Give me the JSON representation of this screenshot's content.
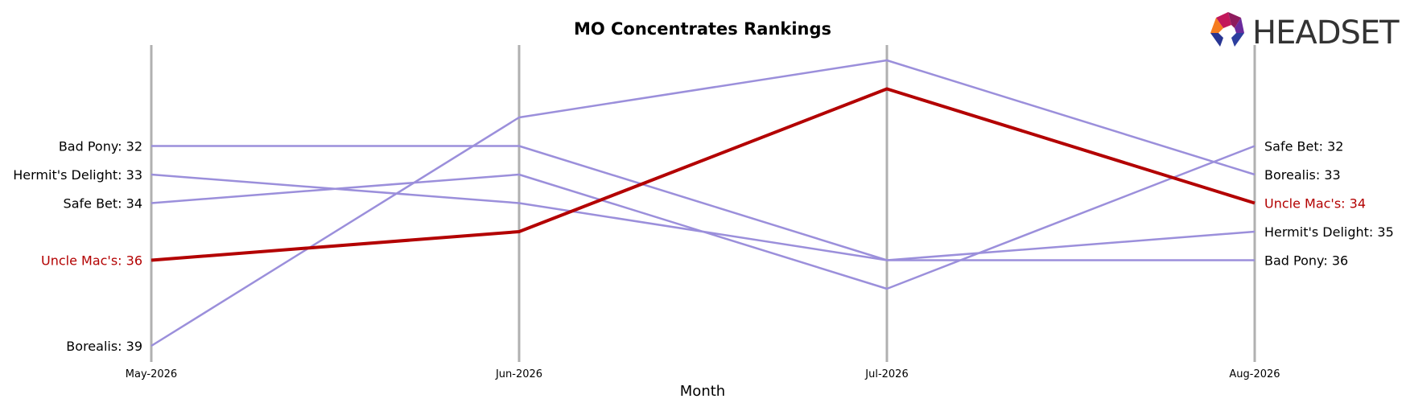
{
  "chart_data": {
    "type": "line",
    "title": "MO Concentrates Rankings",
    "xlabel": "Month",
    "ylabel": "",
    "categories": [
      "May-2026",
      "Jun-2026",
      "Jul-2026",
      "Aug-2026"
    ],
    "y_inverted": true,
    "ylim": [
      29,
      40
    ],
    "series": [
      {
        "name": "Bad Pony",
        "values": [
          32,
          32,
          36,
          36
        ],
        "highlight": false
      },
      {
        "name": "Hermit's Delight",
        "values": [
          33,
          34,
          36,
          35
        ],
        "highlight": false
      },
      {
        "name": "Safe Bet",
        "values": [
          34,
          33,
          37,
          32
        ],
        "highlight": false
      },
      {
        "name": "Uncle Mac's",
        "values": [
          36,
          35,
          30,
          34
        ],
        "highlight": true
      },
      {
        "name": "Borealis",
        "values": [
          39,
          31,
          29,
          33
        ],
        "highlight": false
      }
    ],
    "left_labels": [
      "Bad Pony: 32",
      "Hermit's Delight: 33",
      "Safe Bet: 34",
      "Uncle Mac's: 36",
      "Borealis: 39"
    ],
    "right_labels": [
      "Safe Bet: 32",
      "Borealis: 33",
      "Uncle Mac's: 34",
      "Hermit's Delight: 35",
      "Bad Pony: 36"
    ],
    "colors": {
      "default": "#9b8fdb",
      "highlight": "#b30000",
      "axis": "#b0b0b0"
    }
  },
  "logo": {
    "text": "HEADSET"
  }
}
